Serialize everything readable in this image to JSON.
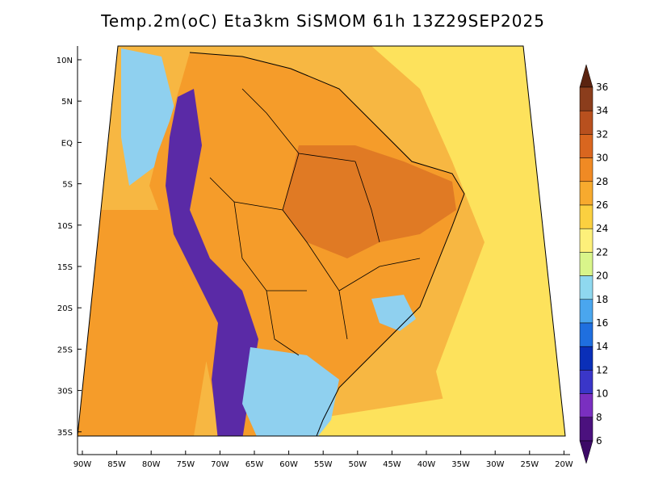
{
  "title": "Temp.2m(oC) Eta3km SiSMOM 61h 13Z29SEP2025",
  "lat_labels": [
    "10N",
    "5N",
    "EQ",
    "5S",
    "10S",
    "15S",
    "20S",
    "25S",
    "30S",
    "35S"
  ],
  "lon_labels": [
    "90W",
    "85W",
    "80W",
    "75W",
    "70W",
    "65W",
    "60W",
    "55W",
    "50W",
    "45W",
    "40W",
    "35W",
    "30W",
    "25W",
    "20W"
  ],
  "colorbar": {
    "labels": [
      "36",
      "34",
      "32",
      "30",
      "28",
      "26",
      "24",
      "22",
      "20",
      "18",
      "16",
      "14",
      "12",
      "10",
      "8",
      "6"
    ],
    "colors": [
      "#5a2310",
      "#8b3d1c",
      "#b8501e",
      "#d9661f",
      "#f08a24",
      "#f7aa2e",
      "#fbd040",
      "#fdf07a",
      "#d9f58a",
      "#8fd8ef",
      "#4aa6ee",
      "#1f6fdf",
      "#0a2fb8",
      "#3a36c8",
      "#7a2fc0",
      "#4b117e",
      "#3c0a66"
    ]
  },
  "map": {
    "ocean_warm": "#f7b742",
    "ocean_cool": "#fde25c",
    "land_hot": "#e07a24",
    "land_mid": "#f59c2a",
    "andes": "#5a2aa6",
    "south_cool": "#8fd0ef"
  }
}
